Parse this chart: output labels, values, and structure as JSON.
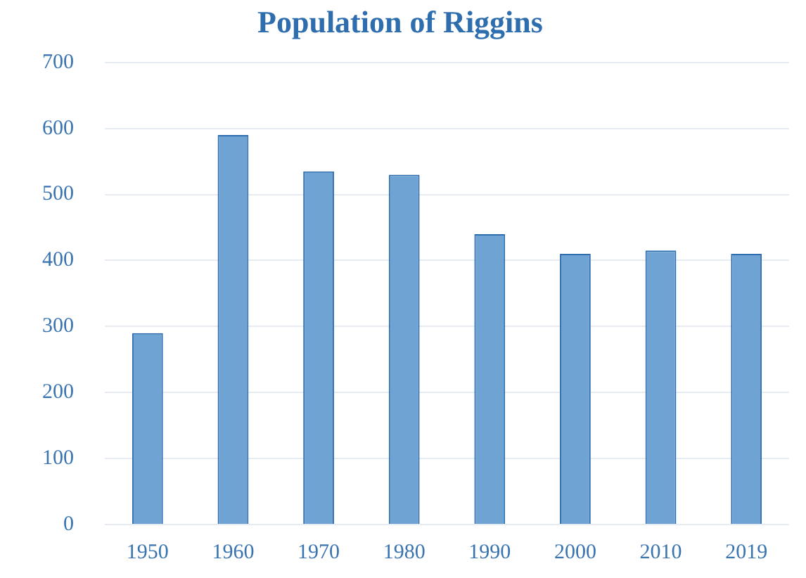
{
  "chart_data": {
    "type": "bar",
    "title": "Population of Riggins",
    "categories": [
      "1950",
      "1960",
      "1970",
      "1980",
      "1990",
      "2000",
      "2010",
      "2019"
    ],
    "values": [
      290,
      590,
      535,
      530,
      440,
      410,
      415,
      410
    ],
    "color": "#6fa3d4",
    "ylim": [
      0,
      700
    ],
    "yticks": [
      0,
      100,
      200,
      300,
      400,
      500,
      600,
      700
    ],
    "grid": "y"
  }
}
